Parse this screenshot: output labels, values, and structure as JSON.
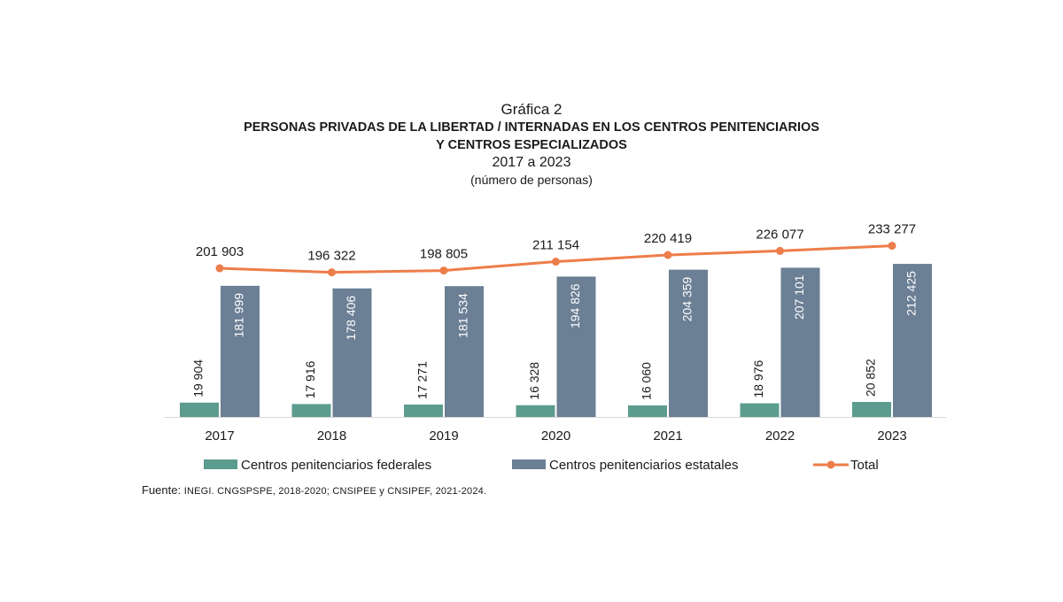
{
  "header": {
    "label": "Gráfica 2",
    "title_line1": "PERSONAS PRIVADAS DE LA LIBERTAD / INTERNADAS EN LOS CENTROS PENITENCIARIOS",
    "title_line2": "Y CENTROS ESPECIALIZADOS",
    "years": "2017 a 2023",
    "unit": "(número de personas)"
  },
  "chart_data": {
    "type": "bar",
    "categories": [
      "2017",
      "2018",
      "2019",
      "2020",
      "2021",
      "2022",
      "2023"
    ],
    "series": [
      {
        "name": "Centros penitenciarios federales",
        "kind": "bar",
        "color": "#5b9c8f",
        "values": [
          19904,
          17916,
          17271,
          16328,
          16060,
          18976,
          20852
        ],
        "labels": [
          "19 904",
          "17 916",
          "17 271",
          "16 328",
          "16 060",
          "18 976",
          "20 852"
        ]
      },
      {
        "name": "Centros penitenciarios estatales",
        "kind": "bar",
        "color": "#6b7f95",
        "values": [
          181999,
          178406,
          181534,
          194826,
          204359,
          207101,
          212425
        ],
        "labels": [
          "181 999",
          "178 406",
          "181 534",
          "194 826",
          "204 359",
          "207 101",
          "212 425"
        ]
      },
      {
        "name": "Total",
        "kind": "line",
        "color": "#ed7d4a",
        "values": [
          201903,
          196322,
          198805,
          211154,
          220419,
          226077,
          233277
        ],
        "labels": [
          "201 903",
          "196 322",
          "198 805",
          "211 154",
          "220 419",
          "226 077",
          "233 277"
        ]
      }
    ],
    "legend_position": "bottom",
    "grid": false
  },
  "source": {
    "prefix": "Fuente: ",
    "text": "INEGI. CNGSPSPE, 2018-2020; CNSIPEE y CNSIPEF, 2021-2024."
  }
}
